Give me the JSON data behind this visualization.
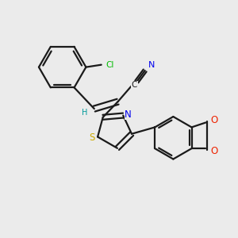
{
  "bg_color": "#ebebeb",
  "bond_color": "#1a1a1a",
  "bond_width": 1.6,
  "atom_colors": {
    "Cl": "#00bb00",
    "N": "#0000ee",
    "S": "#ccaa00",
    "O": "#ee2200",
    "C": "#1a1a1a",
    "H": "#009999"
  },
  "figsize": [
    3.0,
    3.0
  ],
  "dpi": 100
}
